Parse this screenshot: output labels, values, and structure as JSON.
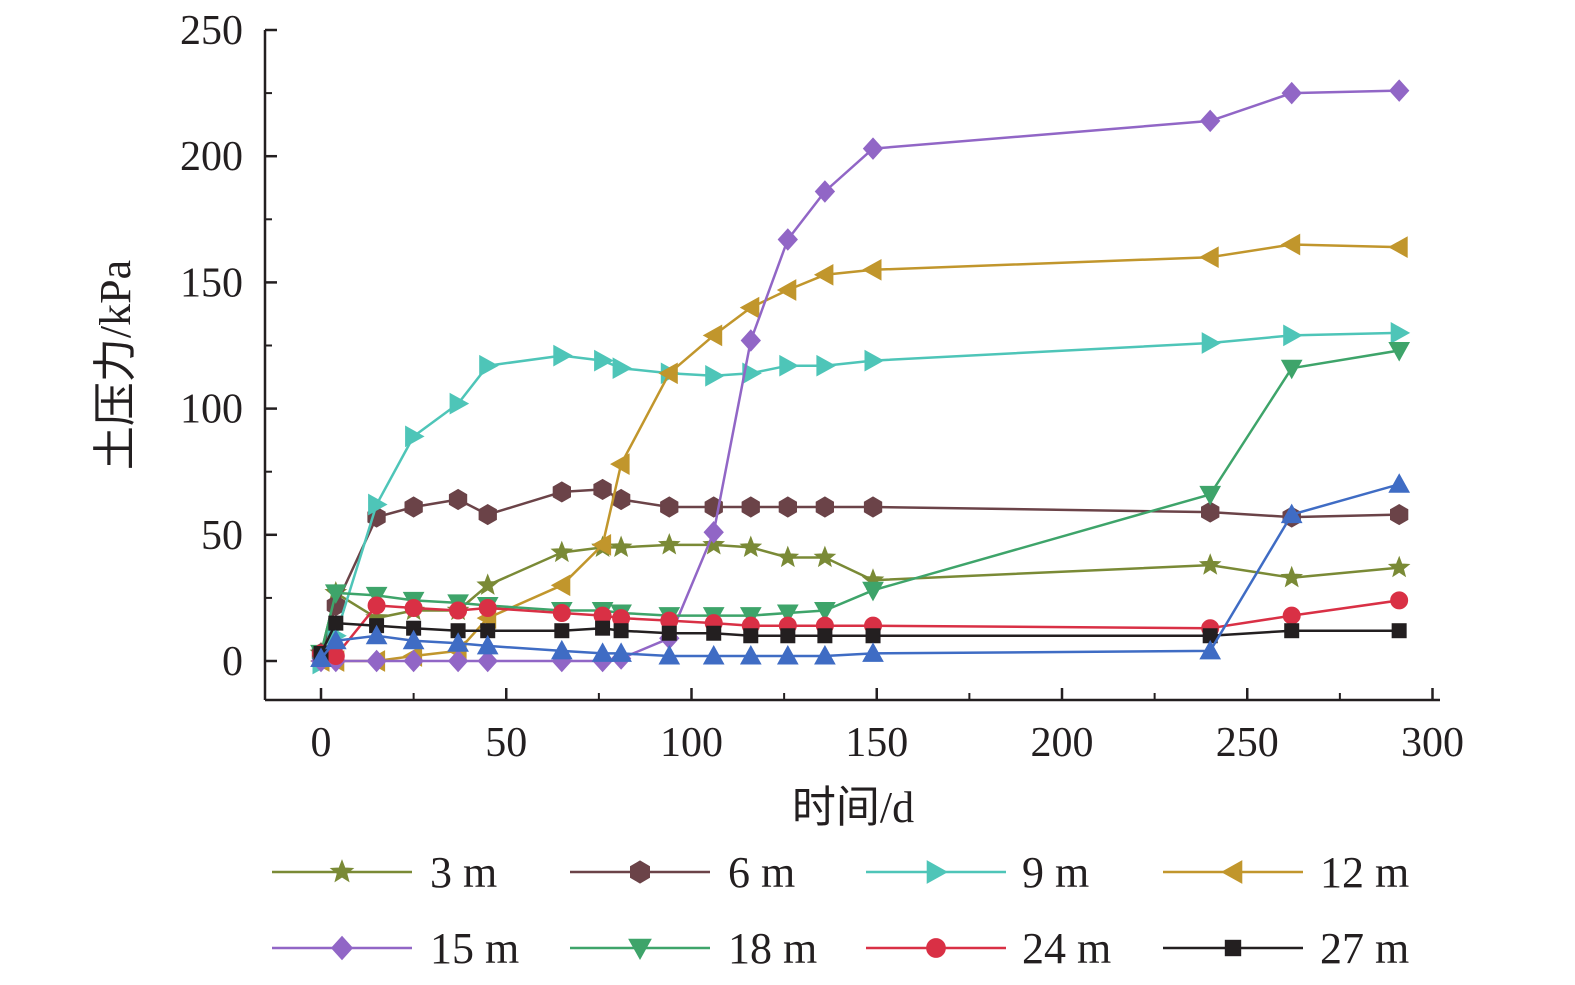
{
  "chart_data": {
    "type": "line",
    "xlabel": "时间/d",
    "ylabel": "土压力/kPa",
    "xlim": [
      -15,
      300
    ],
    "ylim": [
      -15,
      250
    ],
    "xticks": [
      0,
      50,
      100,
      150,
      200,
      250,
      300
    ],
    "yticks": [
      0,
      50,
      100,
      150,
      200,
      250
    ],
    "x_tick_labels": [
      "0",
      "50",
      "100",
      "150",
      "200",
      "250",
      "300"
    ],
    "y_tick_labels": [
      "0",
      "50",
      "100",
      "150",
      "200",
      "250"
    ],
    "legend_position": "bottom",
    "series": [
      {
        "name": "3 m",
        "color": "#7a8a36",
        "marker": "star",
        "points": [
          [
            0,
            3
          ],
          [
            4,
            27
          ],
          [
            15,
            17
          ],
          [
            25,
            20
          ],
          [
            37,
            20
          ],
          [
            45,
            30
          ],
          [
            65,
            43
          ],
          [
            76,
            45
          ],
          [
            81,
            45
          ],
          [
            94,
            46
          ],
          [
            106,
            46
          ],
          [
            116,
            45
          ],
          [
            126,
            41
          ],
          [
            136,
            41
          ],
          [
            149,
            32
          ],
          [
            240,
            38
          ],
          [
            262,
            33
          ],
          [
            291,
            37
          ]
        ]
      },
      {
        "name": "6 m",
        "color": "#6b4348",
        "marker": "hexagon",
        "points": [
          [
            0,
            3
          ],
          [
            4,
            22
          ],
          [
            15,
            57
          ],
          [
            25,
            61
          ],
          [
            37,
            64
          ],
          [
            45,
            58
          ],
          [
            65,
            67
          ],
          [
            76,
            68
          ],
          [
            81,
            64
          ],
          [
            94,
            61
          ],
          [
            106,
            61
          ],
          [
            116,
            61
          ],
          [
            126,
            61
          ],
          [
            136,
            61
          ],
          [
            149,
            61
          ],
          [
            240,
            59
          ],
          [
            262,
            57
          ],
          [
            291,
            58
          ]
        ]
      },
      {
        "name": "9 m",
        "color": "#4ec5b8",
        "marker": "triangle-right",
        "points": [
          [
            0,
            -1
          ],
          [
            4,
            10
          ],
          [
            15,
            62
          ],
          [
            25,
            89
          ],
          [
            37,
            102
          ],
          [
            45,
            117
          ],
          [
            65,
            121
          ],
          [
            76,
            119
          ],
          [
            81,
            116
          ],
          [
            94,
            114
          ],
          [
            106,
            113
          ],
          [
            116,
            114
          ],
          [
            126,
            117
          ],
          [
            136,
            117
          ],
          [
            149,
            119
          ],
          [
            240,
            126
          ],
          [
            262,
            129
          ],
          [
            291,
            130
          ]
        ]
      },
      {
        "name": "12 m",
        "color": "#c1962c",
        "marker": "triangle-left",
        "points": [
          [
            0,
            0
          ],
          [
            4,
            0
          ],
          [
            15,
            0
          ],
          [
            25,
            2
          ],
          [
            37,
            4
          ],
          [
            45,
            17
          ],
          [
            65,
            30
          ],
          [
            76,
            46
          ],
          [
            81,
            78
          ],
          [
            94,
            114
          ],
          [
            106,
            129
          ],
          [
            116,
            140
          ],
          [
            126,
            147
          ],
          [
            136,
            153
          ],
          [
            149,
            155
          ],
          [
            240,
            160
          ],
          [
            262,
            165
          ],
          [
            291,
            164
          ]
        ]
      },
      {
        "name": "15 m",
        "color": "#9166c6",
        "marker": "diamond",
        "points": [
          [
            0,
            0
          ],
          [
            4,
            0
          ],
          [
            15,
            0
          ],
          [
            25,
            0
          ],
          [
            37,
            0
          ],
          [
            45,
            0
          ],
          [
            65,
            0
          ],
          [
            76,
            0
          ],
          [
            81,
            1
          ],
          [
            94,
            9
          ],
          [
            106,
            51
          ],
          [
            116,
            127
          ],
          [
            126,
            167
          ],
          [
            136,
            186
          ],
          [
            149,
            203
          ],
          [
            240,
            214
          ],
          [
            262,
            225
          ],
          [
            291,
            226
          ]
        ]
      },
      {
        "name": "18 m",
        "color": "#3ea46a",
        "marker": "triangle-down",
        "points": [
          [
            0,
            3
          ],
          [
            4,
            27
          ],
          [
            15,
            26
          ],
          [
            25,
            24
          ],
          [
            37,
            23
          ],
          [
            45,
            22
          ],
          [
            65,
            20
          ],
          [
            76,
            20
          ],
          [
            81,
            19
          ],
          [
            94,
            18
          ],
          [
            106,
            18
          ],
          [
            116,
            18
          ],
          [
            126,
            19
          ],
          [
            136,
            20
          ],
          [
            149,
            28
          ],
          [
            240,
            66
          ],
          [
            262,
            116
          ],
          [
            291,
            123
          ]
        ]
      },
      {
        "name": "24 m",
        "color": "#d93045",
        "marker": "circle",
        "points": [
          [
            0,
            3
          ],
          [
            4,
            2
          ],
          [
            15,
            22
          ],
          [
            25,
            21
          ],
          [
            37,
            20
          ],
          [
            45,
            21
          ],
          [
            65,
            19
          ],
          [
            76,
            18
          ],
          [
            81,
            17
          ],
          [
            94,
            16
          ],
          [
            106,
            15
          ],
          [
            116,
            14
          ],
          [
            126,
            14
          ],
          [
            136,
            14
          ],
          [
            149,
            14
          ],
          [
            240,
            13
          ],
          [
            262,
            18
          ],
          [
            291,
            24
          ]
        ]
      },
      {
        "name": "27 m",
        "color": "#231f20",
        "marker": "square",
        "points": [
          [
            0,
            3
          ],
          [
            4,
            15
          ],
          [
            15,
            14
          ],
          [
            25,
            13
          ],
          [
            37,
            12
          ],
          [
            45,
            12
          ],
          [
            65,
            12
          ],
          [
            76,
            13
          ],
          [
            81,
            12
          ],
          [
            94,
            11
          ],
          [
            106,
            11
          ],
          [
            116,
            10
          ],
          [
            126,
            10
          ],
          [
            136,
            10
          ],
          [
            149,
            10
          ],
          [
            240,
            10
          ],
          [
            262,
            12
          ],
          [
            291,
            12
          ]
        ]
      },
      {
        "name": "",
        "color": "#3f6cc4",
        "marker": "triangle-up",
        "points": [
          [
            0,
            1
          ],
          [
            4,
            8
          ],
          [
            15,
            10
          ],
          [
            25,
            8
          ],
          [
            37,
            7
          ],
          [
            45,
            6
          ],
          [
            65,
            4
          ],
          [
            76,
            3
          ],
          [
            81,
            3
          ],
          [
            94,
            2
          ],
          [
            106,
            2
          ],
          [
            116,
            2
          ],
          [
            126,
            2
          ],
          [
            136,
            2
          ],
          [
            149,
            3
          ],
          [
            240,
            4
          ],
          [
            262,
            58
          ],
          [
            291,
            70
          ]
        ]
      }
    ]
  }
}
